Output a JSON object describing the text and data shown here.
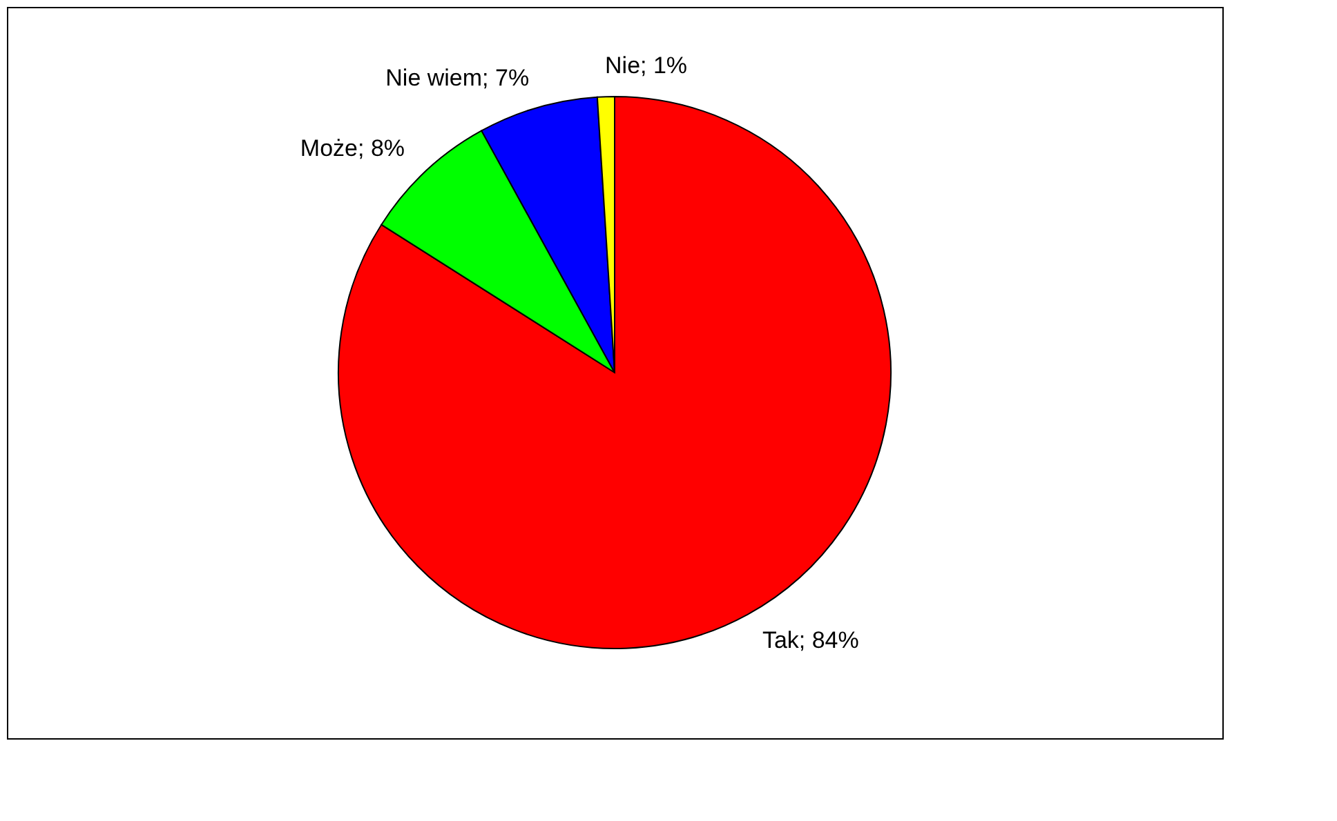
{
  "chart_data": {
    "type": "pie",
    "categories": [
      "Tak",
      "Może",
      "Nie wiem",
      "Nie"
    ],
    "values": [
      84,
      8,
      7,
      1
    ],
    "colors": [
      "#ff0000",
      "#00ff00",
      "#0000ff",
      "#ffff00"
    ],
    "value_labels": [
      "84%",
      "8%",
      "7%",
      "1%"
    ],
    "legend": false
  }
}
